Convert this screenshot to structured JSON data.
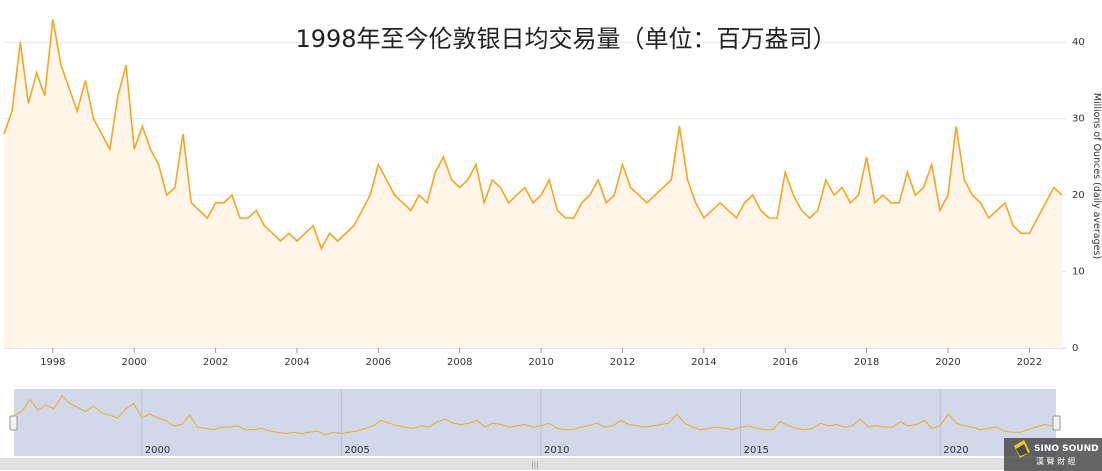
{
  "chart_data": {
    "type": "line",
    "title": "1998年至今伦敦银日均交易量（单位：百万盎司）",
    "ylabel": "Millions of Ounces (daily averages)",
    "ylim": [
      0,
      45
    ],
    "yticks": [
      0,
      10,
      20,
      30,
      40
    ],
    "xlim": [
      1996.8,
      2022.9
    ],
    "xticks": [
      "1998",
      "2000",
      "2002",
      "2004",
      "2006",
      "2008",
      "2010",
      "2012",
      "2014",
      "2016",
      "2018",
      "2020",
      "2022"
    ],
    "grid": true,
    "legend": "none",
    "series": [
      {
        "x": [
          1996.8,
          1997.0,
          1997.2,
          1997.4,
          1997.6,
          1997.8,
          1998.0,
          1998.2,
          1998.4,
          1998.6,
          1998.8,
          1999.0,
          1999.2,
          1999.4,
          1999.6,
          1999.8,
          2000.0,
          2000.2,
          2000.4,
          2000.6,
          2000.8,
          2001.0,
          2001.2,
          2001.4,
          2001.6,
          2001.8,
          2002.0,
          2002.2,
          2002.4,
          2002.6,
          2002.8,
          2003.0,
          2003.2,
          2003.4,
          2003.6,
          2003.8,
          2004.0,
          2004.2,
          2004.4,
          2004.6,
          2004.8,
          2005.0,
          2005.2,
          2005.4,
          2005.6,
          2005.8,
          2006.0,
          2006.2,
          2006.4,
          2006.6,
          2006.8,
          2007.0,
          2007.2,
          2007.4,
          2007.6,
          2007.8,
          2008.0,
          2008.2,
          2008.4,
          2008.6,
          2008.8,
          2009.0,
          2009.2,
          2009.4,
          2009.6,
          2009.8,
          2010.0,
          2010.2,
          2010.4,
          2010.6,
          2010.8,
          2011.0,
          2011.2,
          2011.4,
          2011.6,
          2011.8,
          2012.0,
          2012.2,
          2012.4,
          2012.6,
          2012.8,
          2013.0,
          2013.2,
          2013.4,
          2013.6,
          2013.8,
          2014.0,
          2014.2,
          2014.4,
          2014.6,
          2014.8,
          2015.0,
          2015.2,
          2015.4,
          2015.6,
          2015.8,
          2016.0,
          2016.2,
          2016.4,
          2016.6,
          2016.8,
          2017.0,
          2017.2,
          2017.4,
          2017.6,
          2017.8,
          2018.0,
          2018.2,
          2018.4,
          2018.6,
          2018.8,
          2019.0,
          2019.2,
          2019.4,
          2019.6,
          2019.8,
          2020.0,
          2020.2,
          2020.4,
          2020.6,
          2020.8,
          2021.0,
          2021.2,
          2021.4,
          2021.6,
          2021.8,
          2022.0,
          2022.2,
          2022.4,
          2022.6,
          2022.8
        ],
        "values": [
          28,
          31,
          40,
          32,
          36,
          33,
          43,
          37,
          34,
          31,
          35,
          30,
          28,
          26,
          33,
          37,
          26,
          29,
          26,
          24,
          20,
          21,
          28,
          19,
          18,
          17,
          19,
          19,
          20,
          17,
          17,
          18,
          16,
          15,
          14,
          15,
          14,
          15,
          16,
          13,
          15,
          14,
          15,
          16,
          18,
          20,
          24,
          22,
          20,
          19,
          18,
          20,
          19,
          23,
          25,
          22,
          21,
          22,
          24,
          19,
          22,
          21,
          19,
          20,
          21,
          19,
          20,
          22,
          18,
          17,
          17,
          19,
          20,
          22,
          19,
          20,
          24,
          21,
          20,
          19,
          20,
          21,
          22,
          29,
          22,
          19,
          17,
          18,
          19,
          18,
          17,
          19,
          20,
          18,
          17,
          17,
          23,
          20,
          18,
          17,
          18,
          22,
          20,
          21,
          19,
          20,
          25,
          19,
          20,
          19,
          19,
          23,
          20,
          21,
          24,
          18,
          20,
          29,
          22,
          20,
          19,
          17,
          18,
          19,
          16,
          15,
          15,
          17,
          19,
          21,
          20
        ]
      }
    ]
  },
  "navigator": {
    "ticks": [
      "2000",
      "2005",
      "2010",
      "2015",
      "2020"
    ],
    "scroll_grip": "|||"
  },
  "watermark": {
    "brand": "SINO SOUND",
    "sub": "漢 聲 財 經"
  },
  "colors": {
    "line": "#f5a623",
    "fill": "#fff5e8",
    "grid": "#e6e6e6",
    "navigator_bg": "#ccd4e8",
    "scrollbar": "#e0e0e0"
  }
}
